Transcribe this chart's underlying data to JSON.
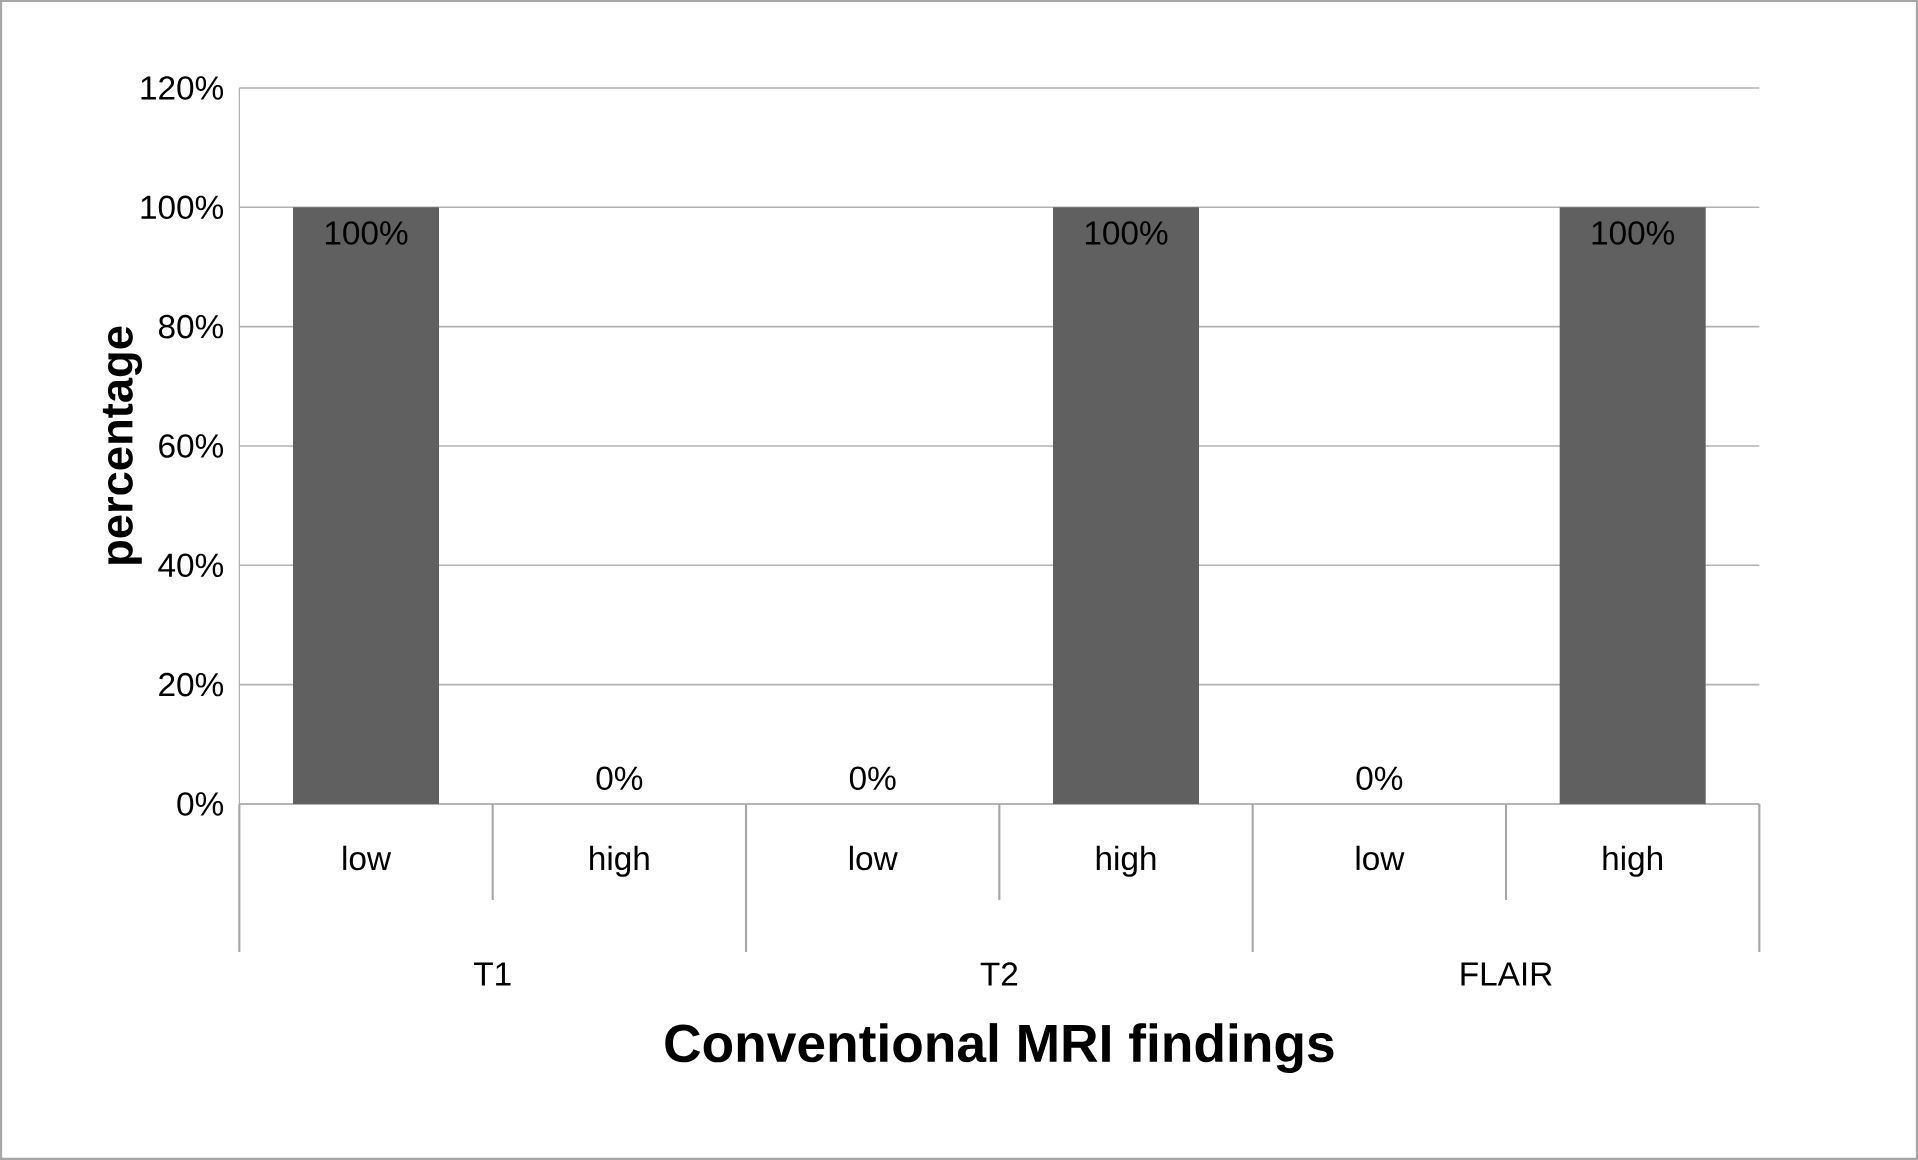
{
  "chart_data": {
    "type": "bar",
    "xlabel": "Conventional MRI findings",
    "ylabel": "percentage",
    "categories": [
      "low",
      "high",
      "low",
      "high",
      "low",
      "high"
    ],
    "values": [
      100,
      0,
      0,
      100,
      0,
      100
    ],
    "value_labels": [
      "100%",
      "0%",
      "0%",
      "100%",
      "0%",
      "100%"
    ],
    "color": "#606060",
    "ylim": [
      0,
      120
    ],
    "yticks": [
      {
        "value": 0,
        "label": "0%"
      },
      {
        "value": 20,
        "label": "20%"
      },
      {
        "value": 40,
        "label": "40%"
      },
      {
        "value": 60,
        "label": "60%"
      },
      {
        "value": 80,
        "label": "80%"
      },
      {
        "value": 100,
        "label": "100%"
      },
      {
        "value": 120,
        "label": "120%"
      }
    ],
    "grid": "y",
    "annotations": [
      "T1",
      "T2",
      "FLAIR"
    ]
  }
}
